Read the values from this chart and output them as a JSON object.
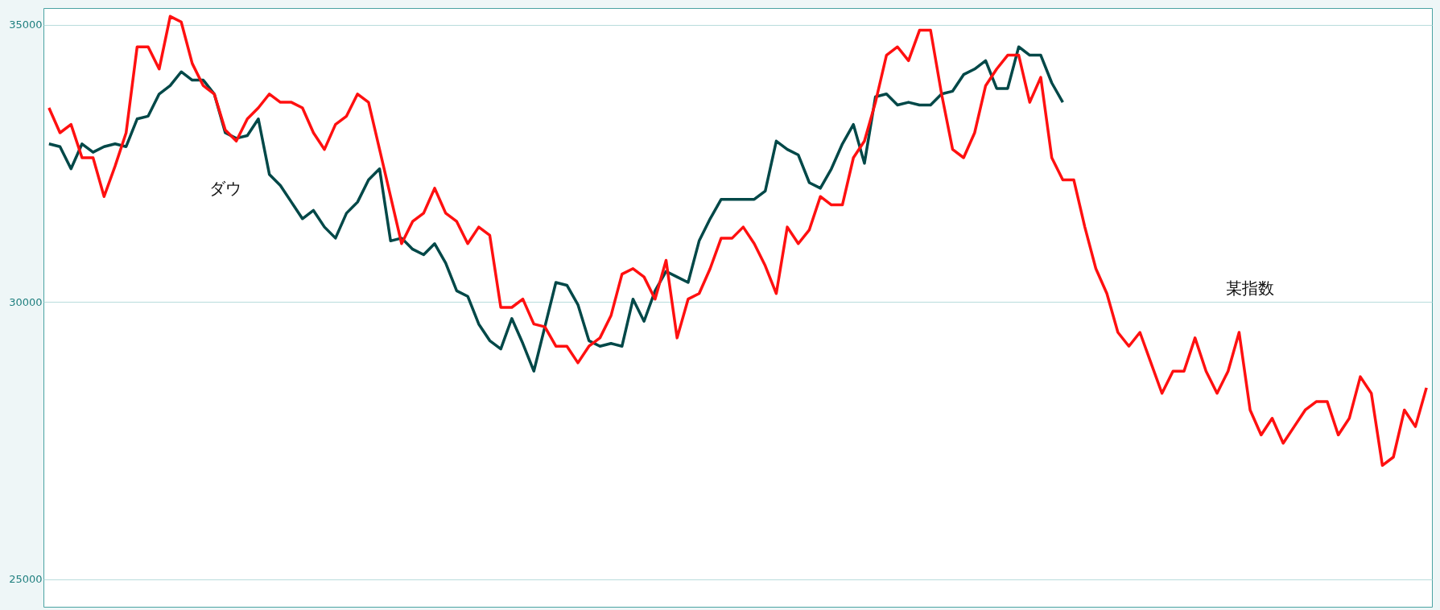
{
  "chart_data": {
    "type": "line",
    "ylim": [
      24500,
      35300
    ],
    "yticks": [
      25000,
      30000,
      35000
    ],
    "tick_labels": "y",
    "grid": "y",
    "legend": false,
    "marker": "none",
    "line_style": "solid",
    "categories": [
      null,
      null,
      null,
      null,
      null,
      null,
      null,
      null,
      null,
      null,
      null,
      null,
      null,
      null,
      null,
      null,
      null,
      null,
      null,
      null,
      null,
      null,
      null,
      null,
      null,
      null,
      null,
      null,
      null,
      null,
      null,
      null,
      null,
      null,
      null,
      null,
      null,
      null,
      null,
      null,
      null,
      null,
      null,
      null,
      null,
      null,
      null,
      null,
      null,
      null,
      null,
      null,
      null,
      null,
      null,
      null,
      null,
      null,
      null,
      null,
      null,
      null,
      null,
      null,
      null,
      null,
      null,
      null,
      null,
      null,
      null,
      null,
      null,
      null,
      null,
      null,
      null,
      null,
      null,
      null,
      null,
      null,
      null,
      null,
      null,
      null,
      null,
      null,
      null,
      null,
      null,
      null,
      null,
      null,
      null,
      null,
      null,
      null,
      null,
      null,
      null,
      null,
      null,
      null,
      null,
      null,
      null,
      null,
      null,
      null,
      null,
      null,
      null,
      null,
      null,
      null,
      null,
      null,
      null,
      null,
      null,
      null,
      null,
      null,
      null,
      null
    ],
    "series": [
      {
        "name": "ダウ",
        "color": "#004848",
        "values": [
          32850,
          32800,
          32400,
          32850,
          32700,
          32800,
          32850,
          32800,
          33300,
          33350,
          33750,
          33900,
          34150,
          34000,
          34000,
          33750,
          33050,
          32950,
          33000,
          33300,
          32300,
          32100,
          31800,
          31500,
          31650,
          31350,
          31150,
          31600,
          31800,
          32200,
          32400,
          31100,
          31150,
          30950,
          30850,
          31050,
          30700,
          30200,
          30100,
          29600,
          29300,
          29150,
          29700,
          29250,
          28750,
          29550,
          30350,
          30300,
          29950,
          29300,
          29200,
          29250,
          29200,
          30050,
          29650,
          30200,
          30550,
          30450,
          30350,
          31100,
          31500,
          31850,
          31850,
          31850,
          31850,
          32000,
          32900,
          32750,
          32650,
          32150,
          32050,
          32400,
          32850,
          33200,
          32500,
          33700,
          33750,
          33550,
          33600,
          33550,
          33550,
          33750,
          33800,
          34100,
          34200,
          34350,
          33850,
          33850,
          34600,
          34450,
          34450,
          33950,
          33600,
          null,
          null,
          null,
          null,
          null,
          null,
          null,
          null,
          null,
          null,
          null,
          null,
          null,
          null,
          null,
          null,
          null,
          null,
          null,
          null,
          null,
          null,
          null,
          null,
          null,
          null,
          null,
          null,
          null,
          null,
          null,
          null,
          null
        ]
      },
      {
        "name": "某指数",
        "color": "#ff1010",
        "values": [
          33500,
          33050,
          33200,
          32600,
          32600,
          31900,
          32450,
          33050,
          34600,
          34600,
          34200,
          35150,
          35050,
          34300,
          33900,
          33750,
          33100,
          32900,
          33300,
          33500,
          33750,
          33600,
          33600,
          33500,
          33050,
          32750,
          33200,
          33350,
          33750,
          33600,
          32750,
          31900,
          31050,
          31450,
          31600,
          32050,
          31600,
          31450,
          31050,
          31350,
          31200,
          29900,
          29900,
          30050,
          29600,
          29550,
          29200,
          29200,
          28900,
          29200,
          29350,
          29750,
          30500,
          30600,
          30450,
          30050,
          30750,
          29350,
          30050,
          30150,
          30600,
          31150,
          31150,
          31350,
          31050,
          30650,
          30150,
          31350,
          31050,
          31300,
          31900,
          31750,
          31750,
          32600,
          32900,
          33600,
          34450,
          34600,
          34350,
          34900,
          34900,
          33750,
          32750,
          32600,
          33050,
          33900,
          34200,
          34450,
          34450,
          33600,
          34050,
          32600,
          32200,
          32200,
          31350,
          30600,
          30150,
          29450,
          29200,
          29450,
          28900,
          28350,
          28750,
          28750,
          29350,
          28750,
          28350,
          28750,
          29450,
          28050,
          27600,
          27900,
          27450,
          27750,
          28050,
          28200,
          28200,
          27600,
          27900,
          28650,
          28350,
          27050,
          27200,
          28050,
          27750,
          28450
        ]
      }
    ]
  }
}
